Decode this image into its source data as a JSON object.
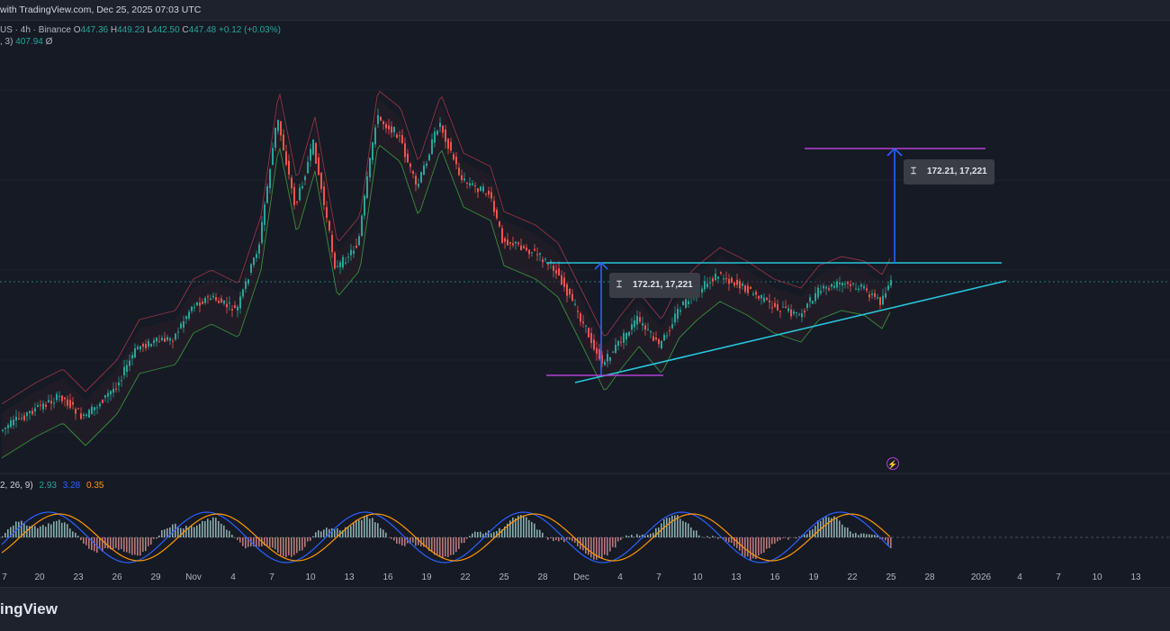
{
  "header": {
    "title": "with TradingView.com, Dec 25, 2025 07:03 UTC"
  },
  "legend": {
    "symbol": "US · 4h · Binance",
    "open_label": "O",
    "open_value": "447.36",
    "high_label": "H",
    "high_value": "449.23",
    "low_label": "L",
    "low_value": "442.50",
    "close_label": "C",
    "close_value": "447.48",
    "change": "+0.12 (+0.03%)",
    "indicator_label": ", 3)",
    "indicator_value": "407.94",
    "indicator_symbol": "Ø"
  },
  "macd": {
    "params": "2, 26, 9)",
    "histogram": "2.93",
    "macd": "3.28",
    "signal": "0.35"
  },
  "measure_labels": [
    "172.21, 17,221",
    "172.21, 17,221"
  ],
  "x_axis": [
    "7",
    "20",
    "23",
    "26",
    "29",
    "Nov",
    "4",
    "7",
    "10",
    "13",
    "16",
    "19",
    "22",
    "25",
    "28",
    "Dec",
    "4",
    "7",
    "10",
    "13",
    "16",
    "19",
    "22",
    "25",
    "28",
    "2026",
    "4",
    "7",
    "10",
    "13"
  ],
  "footer": {
    "brand": "ingView"
  },
  "colors": {
    "background": "#161a25",
    "up": "#26a69a",
    "down": "#ef5350",
    "trendline": "#26c6da",
    "target": "#b33fd4",
    "arrow": "#2962ff"
  }
}
